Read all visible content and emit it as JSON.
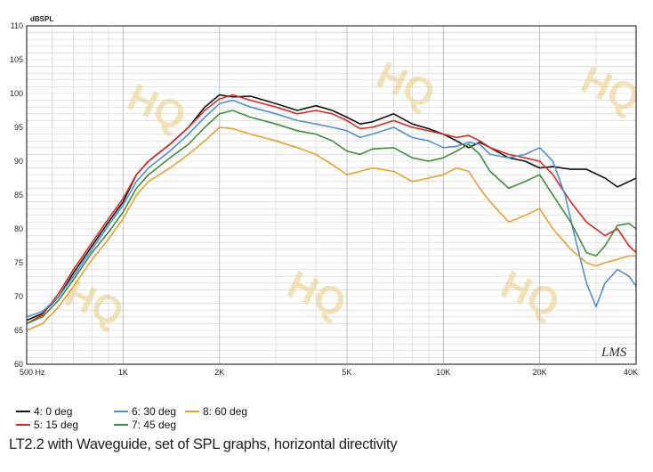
{
  "chart_data": {
    "type": "line",
    "unit_label": "dBSPL",
    "x_scale": "log",
    "xlim": [
      500,
      40000
    ],
    "ylim": [
      60,
      110
    ],
    "y_ticks": [
      60,
      65,
      70,
      75,
      80,
      85,
      90,
      95,
      100,
      105,
      110
    ],
    "x_ticks": [
      {
        "value": 500,
        "label": "500  Hz"
      },
      {
        "value": 1000,
        "label": "1K"
      },
      {
        "value": 2000,
        "label": "2K"
      },
      {
        "value": 5000,
        "label": "5K"
      },
      {
        "value": 10000,
        "label": "10K"
      },
      {
        "value": 20000,
        "label": "20K"
      },
      {
        "value": 40000,
        "label": "40K"
      }
    ],
    "grid": true,
    "legend_position": "bottom",
    "brand_mark": "LMS",
    "series": [
      {
        "name": "4: 0 deg",
        "color": "#111111",
        "points": [
          [
            500,
            66.5
          ],
          [
            560,
            67.5
          ],
          [
            630,
            70
          ],
          [
            700,
            73.5
          ],
          [
            800,
            77.5
          ],
          [
            900,
            81
          ],
          [
            1000,
            84
          ],
          [
            1100,
            88
          ],
          [
            1200,
            90
          ],
          [
            1400,
            92.5
          ],
          [
            1600,
            95
          ],
          [
            1800,
            98
          ],
          [
            2000,
            99.8
          ],
          [
            2200,
            99.5
          ],
          [
            2500,
            99.6
          ],
          [
            3000,
            98.5
          ],
          [
            3500,
            97.5
          ],
          [
            4000,
            98.2
          ],
          [
            4500,
            97.5
          ],
          [
            5000,
            96.5
          ],
          [
            5500,
            95.5
          ],
          [
            6000,
            95.8
          ],
          [
            7000,
            97
          ],
          [
            8000,
            95.5
          ],
          [
            9000,
            94.8
          ],
          [
            10000,
            94
          ],
          [
            11000,
            93
          ],
          [
            12000,
            92
          ],
          [
            13000,
            92.8
          ],
          [
            14000,
            92
          ],
          [
            16000,
            90.5
          ],
          [
            18000,
            90
          ],
          [
            20000,
            89
          ],
          [
            22000,
            89.2
          ],
          [
            25000,
            88.8
          ],
          [
            28000,
            88.8
          ],
          [
            32000,
            87.5
          ],
          [
            35000,
            86.2
          ],
          [
            38000,
            87
          ],
          [
            40000,
            87.5
          ]
        ]
      },
      {
        "name": "5: 15 deg",
        "color": "#d62c20",
        "points": [
          [
            500,
            66
          ],
          [
            560,
            67.3
          ],
          [
            630,
            70.5
          ],
          [
            700,
            74
          ],
          [
            800,
            78
          ],
          [
            900,
            81.5
          ],
          [
            1000,
            84.5
          ],
          [
            1100,
            88
          ],
          [
            1200,
            90
          ],
          [
            1400,
            92.5
          ],
          [
            1600,
            95
          ],
          [
            1800,
            97.5
          ],
          [
            2000,
            99.2
          ],
          [
            2200,
            99.8
          ],
          [
            2500,
            99
          ],
          [
            3000,
            98
          ],
          [
            3500,
            97
          ],
          [
            4000,
            97.5
          ],
          [
            4500,
            97
          ],
          [
            5000,
            96
          ],
          [
            5500,
            94.8
          ],
          [
            6000,
            95
          ],
          [
            7000,
            96
          ],
          [
            8000,
            95
          ],
          [
            9000,
            94.5
          ],
          [
            10000,
            94
          ],
          [
            11000,
            93.5
          ],
          [
            12000,
            93.8
          ],
          [
            13000,
            93
          ],
          [
            14000,
            92
          ],
          [
            16000,
            91
          ],
          [
            18000,
            90.5
          ],
          [
            20000,
            90
          ],
          [
            22000,
            88
          ],
          [
            25000,
            84
          ],
          [
            28000,
            81
          ],
          [
            32000,
            79
          ],
          [
            35000,
            80
          ],
          [
            38000,
            77.5
          ],
          [
            40000,
            76.5
          ]
        ]
      },
      {
        "name": "6: 30 deg",
        "color": "#4f8fd6",
        "points": [
          [
            500,
            67
          ],
          [
            560,
            67.8
          ],
          [
            630,
            70
          ],
          [
            700,
            73
          ],
          [
            800,
            77
          ],
          [
            900,
            80.5
          ],
          [
            1000,
            83.5
          ],
          [
            1100,
            87
          ],
          [
            1200,
            89
          ],
          [
            1400,
            91.5
          ],
          [
            1600,
            94
          ],
          [
            1800,
            96.5
          ],
          [
            2000,
            98.5
          ],
          [
            2200,
            99
          ],
          [
            2500,
            98
          ],
          [
            3000,
            97
          ],
          [
            3500,
            96
          ],
          [
            4000,
            95.5
          ],
          [
            4500,
            95
          ],
          [
            5000,
            94.5
          ],
          [
            5500,
            93.5
          ],
          [
            6000,
            94
          ],
          [
            7000,
            95
          ],
          [
            8000,
            93.5
          ],
          [
            9000,
            93
          ],
          [
            10000,
            92
          ],
          [
            11000,
            92.2
          ],
          [
            12000,
            92.8
          ],
          [
            13000,
            92.5
          ],
          [
            14000,
            91
          ],
          [
            16000,
            90.5
          ],
          [
            18000,
            91
          ],
          [
            20000,
            92
          ],
          [
            22000,
            90
          ],
          [
            24000,
            85
          ],
          [
            26000,
            78
          ],
          [
            28000,
            72
          ],
          [
            30000,
            68.5
          ],
          [
            32000,
            72
          ],
          [
            35000,
            74
          ],
          [
            38000,
            73
          ],
          [
            40000,
            71.5
          ]
        ]
      },
      {
        "name": "7: 45 deg",
        "color": "#3e8f3a",
        "points": [
          [
            500,
            66
          ],
          [
            560,
            67
          ],
          [
            630,
            69.5
          ],
          [
            700,
            72.5
          ],
          [
            800,
            76.5
          ],
          [
            900,
            79.5
          ],
          [
            1000,
            82.5
          ],
          [
            1100,
            86
          ],
          [
            1200,
            88
          ],
          [
            1400,
            90.5
          ],
          [
            1600,
            92.5
          ],
          [
            1800,
            95
          ],
          [
            2000,
            97
          ],
          [
            2200,
            97.5
          ],
          [
            2500,
            96.5
          ],
          [
            3000,
            95.5
          ],
          [
            3500,
            94.5
          ],
          [
            4000,
            94
          ],
          [
            4500,
            93
          ],
          [
            5000,
            91.5
          ],
          [
            5500,
            91
          ],
          [
            6000,
            91.8
          ],
          [
            7000,
            92
          ],
          [
            8000,
            90.5
          ],
          [
            9000,
            90
          ],
          [
            10000,
            90.5
          ],
          [
            11000,
            91.5
          ],
          [
            12000,
            92.5
          ],
          [
            13000,
            91
          ],
          [
            14000,
            88.5
          ],
          [
            16000,
            86
          ],
          [
            18000,
            87
          ],
          [
            20000,
            88
          ],
          [
            22000,
            85
          ],
          [
            25000,
            81
          ],
          [
            28000,
            76.5
          ],
          [
            30000,
            76
          ],
          [
            32000,
            77.5
          ],
          [
            35000,
            80.5
          ],
          [
            38000,
            80.8
          ],
          [
            40000,
            80
          ]
        ]
      },
      {
        "name": "8: 60 deg",
        "color": "#e8a030",
        "points": [
          [
            500,
            65
          ],
          [
            560,
            66
          ],
          [
            630,
            68.5
          ],
          [
            700,
            71.5
          ],
          [
            800,
            75.5
          ],
          [
            900,
            78.5
          ],
          [
            1000,
            81.5
          ],
          [
            1100,
            85
          ],
          [
            1200,
            87
          ],
          [
            1400,
            89
          ],
          [
            1600,
            91
          ],
          [
            1800,
            93
          ],
          [
            2000,
            95
          ],
          [
            2200,
            94.8
          ],
          [
            2500,
            94
          ],
          [
            3000,
            93
          ],
          [
            3500,
            92
          ],
          [
            4000,
            91
          ],
          [
            4500,
            89.5
          ],
          [
            5000,
            88
          ],
          [
            5500,
            88.5
          ],
          [
            6000,
            89
          ],
          [
            7000,
            88.5
          ],
          [
            8000,
            87
          ],
          [
            9000,
            87.5
          ],
          [
            10000,
            88
          ],
          [
            11000,
            89
          ],
          [
            12000,
            88.5
          ],
          [
            13000,
            86
          ],
          [
            14000,
            84
          ],
          [
            16000,
            81
          ],
          [
            18000,
            82
          ],
          [
            20000,
            83
          ],
          [
            22000,
            80
          ],
          [
            25000,
            77
          ],
          [
            28000,
            75
          ],
          [
            30000,
            74.5
          ],
          [
            32000,
            75
          ],
          [
            35000,
            75.5
          ],
          [
            38000,
            76
          ],
          [
            40000,
            76
          ]
        ]
      }
    ]
  },
  "caption": "LT2.2 with Waveguide, set of SPL graphs, horizontal directivity"
}
